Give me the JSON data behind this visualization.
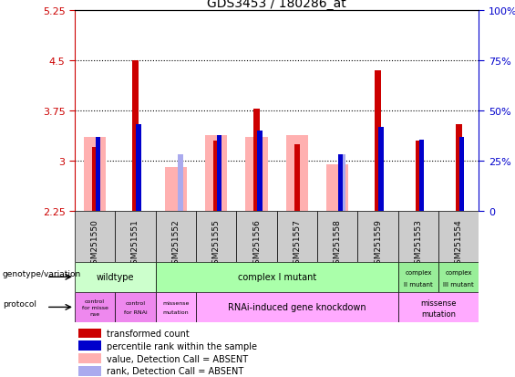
{
  "title": "GDS3453 / 180286_at",
  "samples": [
    "GSM251550",
    "GSM251551",
    "GSM251552",
    "GSM251555",
    "GSM251556",
    "GSM251557",
    "GSM251558",
    "GSM251559",
    "GSM251553",
    "GSM251554"
  ],
  "red_bars": [
    3.2,
    4.5,
    null,
    3.3,
    3.78,
    3.25,
    null,
    4.35,
    3.3,
    3.55
  ],
  "blue_bars": [
    3.35,
    3.55,
    null,
    3.38,
    3.45,
    null,
    3.1,
    3.5,
    3.32,
    3.35
  ],
  "pink_bars": [
    3.35,
    null,
    2.9,
    3.38,
    3.35,
    3.38,
    2.95,
    null,
    null,
    null
  ],
  "lightblue_bars": [
    null,
    null,
    3.1,
    null,
    null,
    null,
    3.1,
    null,
    null,
    null
  ],
  "ylim_left": [
    2.25,
    5.25
  ],
  "ylim_right": [
    0,
    100
  ],
  "yticks_left": [
    2.25,
    3.0,
    3.75,
    4.5,
    5.25
  ],
  "yticks_right": [
    0,
    25,
    50,
    75,
    100
  ],
  "ytick_labels_left": [
    "2.25",
    "3",
    "3.75",
    "4.5",
    "5.25"
  ],
  "ytick_labels_right": [
    "0",
    "25%",
    "50%",
    "75%",
    "100%"
  ],
  "hlines": [
    3.0,
    3.75,
    4.5
  ],
  "red_color": "#cc0000",
  "blue_color": "#0000cc",
  "pink_color": "#ffb0b0",
  "lightblue_color": "#aaaaee",
  "wildtype_color": "#ccffcc",
  "complex_I_color": "#aaffaa",
  "complex_II_color": "#99ee99",
  "complex_III_color": "#99ee99",
  "protocol_purple_color": "#ee88ee",
  "protocol_pink_color": "#ffaaff",
  "gray_bg": "#cccccc",
  "legend_items": [
    {
      "label": "transformed count",
      "color": "#cc0000"
    },
    {
      "label": "percentile rank within the sample",
      "color": "#0000cc"
    },
    {
      "label": "value, Detection Call = ABSENT",
      "color": "#ffb0b0"
    },
    {
      "label": "rank, Detection Call = ABSENT",
      "color": "#aaaaee"
    }
  ]
}
